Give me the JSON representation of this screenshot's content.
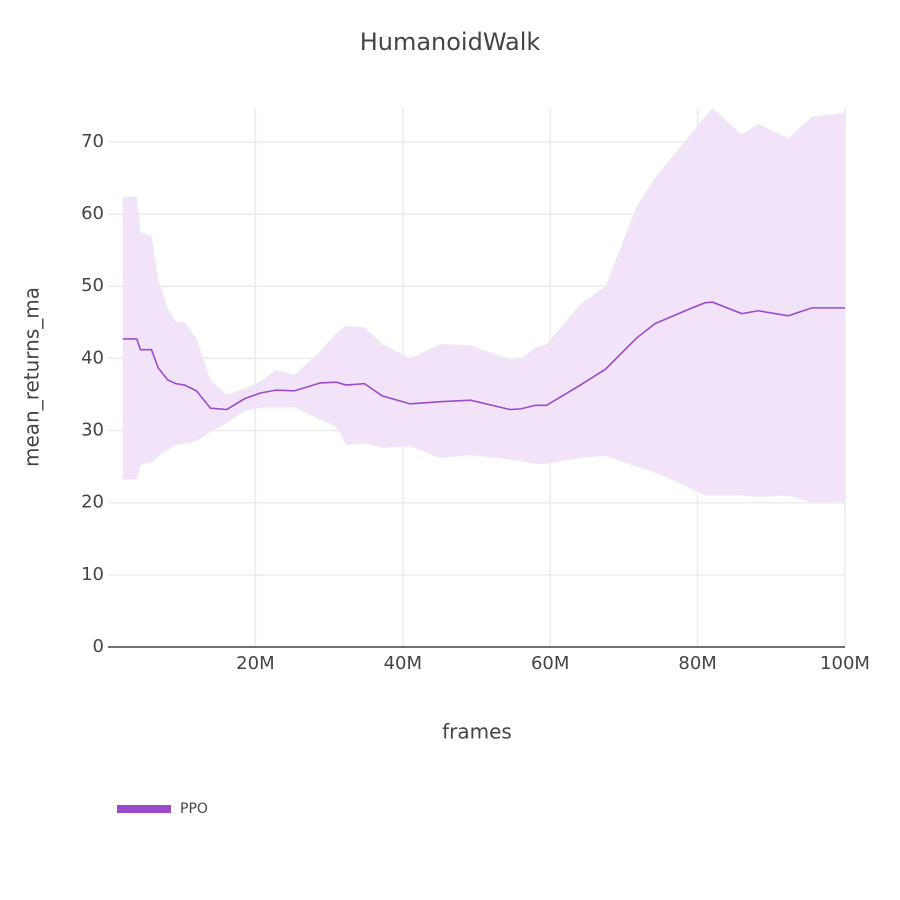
{
  "chart_data": {
    "type": "line_band",
    "title": "HumanoidWalk",
    "xlabel": "frames",
    "ylabel": "mean_returns_ma",
    "x": [
      2000000,
      3900000,
      4400000,
      5900000,
      6800000,
      8100000,
      9200000,
      10400000,
      12000000,
      13900000,
      16100000,
      18500000,
      20700000,
      22800000,
      25300000,
      28800000,
      31000000,
      32300000,
      34800000,
      37200000,
      41000000,
      45100000,
      49200000,
      54600000,
      56000000,
      58000000,
      59500000,
      64100000,
      67500000,
      71700000,
      74200000,
      79000000,
      81000000,
      82000000,
      86000000,
      88200000,
      92300000,
      95500000,
      100000000
    ],
    "series": [
      {
        "name": "PPO",
        "color": "#9b4bcb",
        "band_color": "#f1e4f8",
        "values": [
          42.7,
          42.7,
          41.2,
          41.2,
          38.7,
          37.0,
          36.5,
          36.3,
          35.5,
          33.1,
          32.9,
          34.4,
          35.2,
          35.6,
          35.5,
          36.6,
          36.7,
          36.3,
          36.5,
          34.8,
          33.7,
          34.0,
          34.2,
          32.9,
          33.0,
          33.5,
          33.5,
          36.3,
          38.5,
          42.8,
          44.8,
          46.9,
          47.7,
          47.8,
          46.2,
          46.6,
          45.9,
          47.0,
          47.0
        ],
        "upper": [
          62.4,
          62.4,
          57.5,
          57,
          51,
          47,
          45,
          45,
          42.8,
          37,
          35,
          35.8,
          36.8,
          38.4,
          37.7,
          41,
          43.5,
          44.5,
          44.3,
          42,
          40,
          42,
          41.8,
          39.8,
          40,
          41.5,
          42,
          47.5,
          50,
          61,
          65,
          71,
          73.5,
          74.7,
          71,
          72.5,
          70.5,
          73.5,
          74
        ],
        "lower": [
          23.2,
          23.2,
          25.2,
          25.6,
          26.4,
          27.3,
          28,
          28.2,
          28.5,
          29.8,
          31,
          32.7,
          33.2,
          33.2,
          33.2,
          31.5,
          30.5,
          28,
          28.2,
          27.6,
          27.8,
          26.2,
          26.6,
          26,
          25.8,
          25.4,
          25.4,
          26.2,
          26.5,
          25,
          24.2,
          22,
          21,
          21,
          21,
          20.8,
          21,
          20,
          20.2
        ]
      }
    ],
    "xlim": [
      0,
      100000000
    ],
    "ylim": [
      0,
      74.7
    ],
    "xticks": [
      {
        "value": 20000000,
        "label": "20M"
      },
      {
        "value": 40000000,
        "label": "40M"
      },
      {
        "value": 60000000,
        "label": "60M"
      },
      {
        "value": 80000000,
        "label": "80M"
      },
      {
        "value": 100000000,
        "label": "100M"
      }
    ],
    "yticks": [
      0,
      10,
      20,
      30,
      40,
      50,
      60,
      70
    ],
    "grid": true,
    "legend": "bottom-left"
  }
}
